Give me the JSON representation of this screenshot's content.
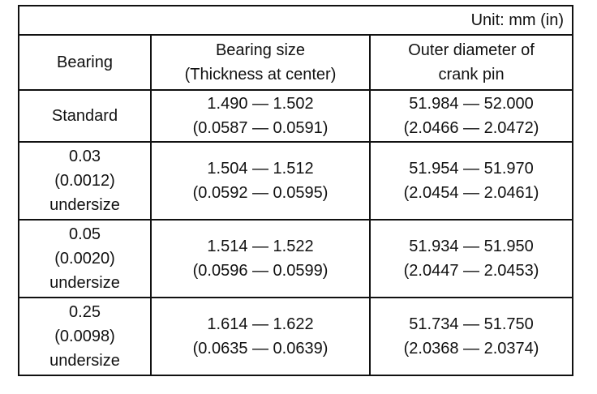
{
  "unit": "Unit: mm (in)",
  "header": [
    [
      "Bearing"
    ],
    [
      "Bearing size",
      "(Thickness at center)"
    ],
    [
      "Outer diameter of",
      "crank pin"
    ]
  ],
  "rows": [
    [
      [
        "Standard"
      ],
      [
        "1.490 — 1.502",
        "(0.0587 — 0.0591)"
      ],
      [
        "51.984 — 52.000",
        "(2.0466 — 2.0472)"
      ]
    ],
    [
      [
        "0.03",
        "(0.0012)",
        "undersize"
      ],
      [
        "1.504 — 1.512",
        "(0.0592 — 0.0595)"
      ],
      [
        "51.954 — 51.970",
        "(2.0454 — 2.0461)"
      ]
    ],
    [
      [
        "0.05",
        "(0.0020)",
        "undersize"
      ],
      [
        "1.514 — 1.522",
        "(0.0596 — 0.0599)"
      ],
      [
        "51.934 — 51.950",
        "(2.0447 — 2.0453)"
      ]
    ],
    [
      [
        "0.25",
        "(0.0098)",
        "undersize"
      ],
      [
        "1.614 — 1.622",
        "(0.0635 — 0.0639)"
      ],
      [
        "51.734 — 51.750",
        "(2.0368 — 2.0374)"
      ]
    ]
  ]
}
